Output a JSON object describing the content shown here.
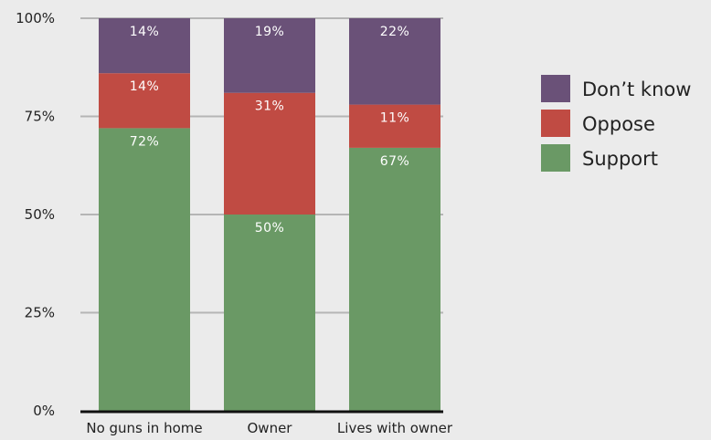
{
  "chart_data": {
    "type": "bar",
    "stacked": true,
    "categories": [
      "No guns in home",
      "Owner",
      "Lives with owner"
    ],
    "series": [
      {
        "name": "Support",
        "values": [
          72,
          50,
          67
        ],
        "color": "#6a9965",
        "labels": [
          "72%",
          "50%",
          "67%"
        ]
      },
      {
        "name": "Oppose",
        "values": [
          14,
          31,
          11
        ],
        "color": "#c04b43",
        "labels": [
          "14%",
          "31%",
          "11%"
        ]
      },
      {
        "name": "Don’t know",
        "values": [
          14,
          19,
          22
        ],
        "color": "#6a5178",
        "labels": [
          "14%",
          "19%",
          "22%"
        ]
      }
    ],
    "legend_order": [
      "Don’t know",
      "Oppose",
      "Support"
    ],
    "yticks": [
      0,
      25,
      50,
      75,
      100
    ],
    "ytick_labels": [
      "0%",
      "25%",
      "50%",
      "75%",
      "100%"
    ],
    "ylim": [
      0,
      100
    ],
    "grid": true,
    "legend_position": "right"
  }
}
